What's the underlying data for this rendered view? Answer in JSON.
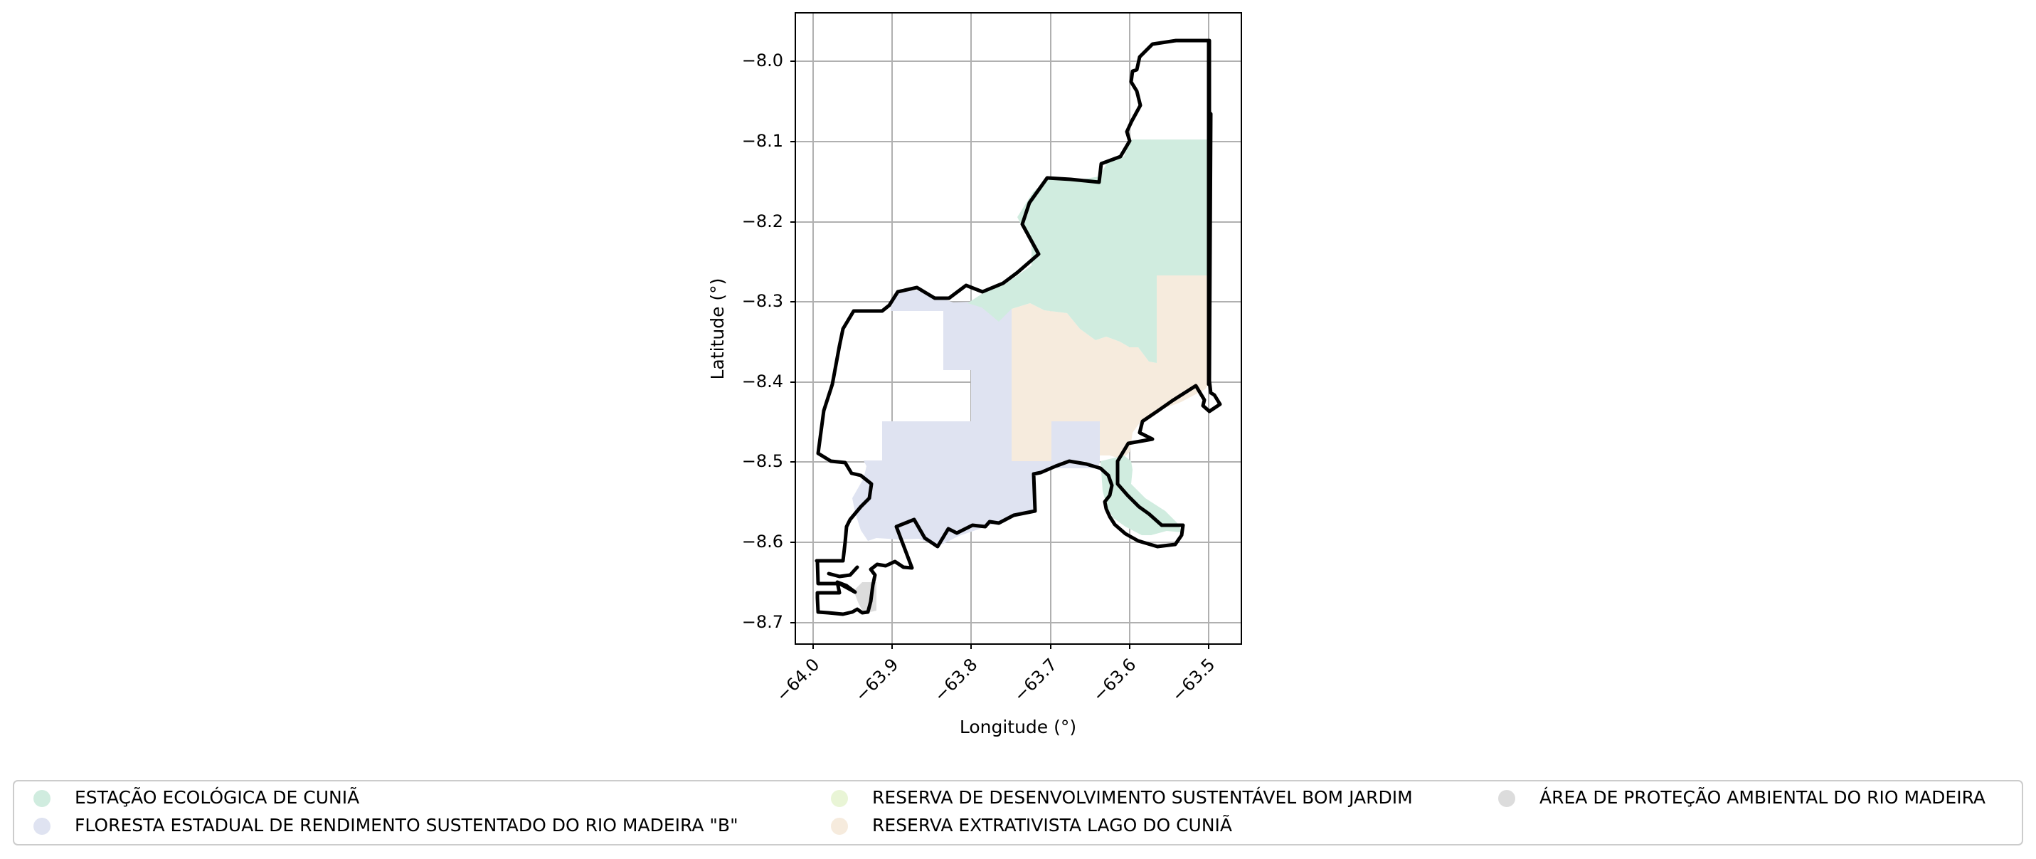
{
  "map": {
    "xlabel": "Longitude (°)",
    "ylabel": "Latitude (°)",
    "x_ticks": [
      "−64.0",
      "−63.9",
      "−63.8",
      "−63.7",
      "−63.6",
      "−63.5"
    ],
    "y_ticks": [
      "−8.0",
      "−8.1",
      "−8.2",
      "−8.3",
      "−8.4",
      "−8.5",
      "−8.6",
      "−8.7"
    ],
    "x_range": [
      -64.022,
      -63.459
    ],
    "y_range": [
      -8.725,
      -7.94
    ],
    "grid": true,
    "legend_placement": "bottom"
  },
  "legend": [
    {
      "label": "ESTAÇÃO ECOLÓGICA DE CUNIÃ",
      "color": "#d0ecdf"
    },
    {
      "label": "FLORESTA ESTADUAL DE RENDIMENTO SUSTENTADO DO RIO MADEIRA \"B\"",
      "color": "#dfe3f1"
    },
    {
      "label": "RESERVA DE DESENVOLVIMENTO SUSTENTÁVEL BOM JARDIM",
      "color": "#e9f5d6"
    },
    {
      "label": "RESERVA EXTRATIVISTA LAGO DO CUNIÃ",
      "color": "#f6ebdd"
    },
    {
      "label": "ÁREA DE PROTEÇÃO AMBIENTAL DO RIO MADEIRA",
      "color": "#dcdcdc"
    }
  ],
  "colors": {
    "boundary": "#000000",
    "grid": "#b0b0b0"
  }
}
